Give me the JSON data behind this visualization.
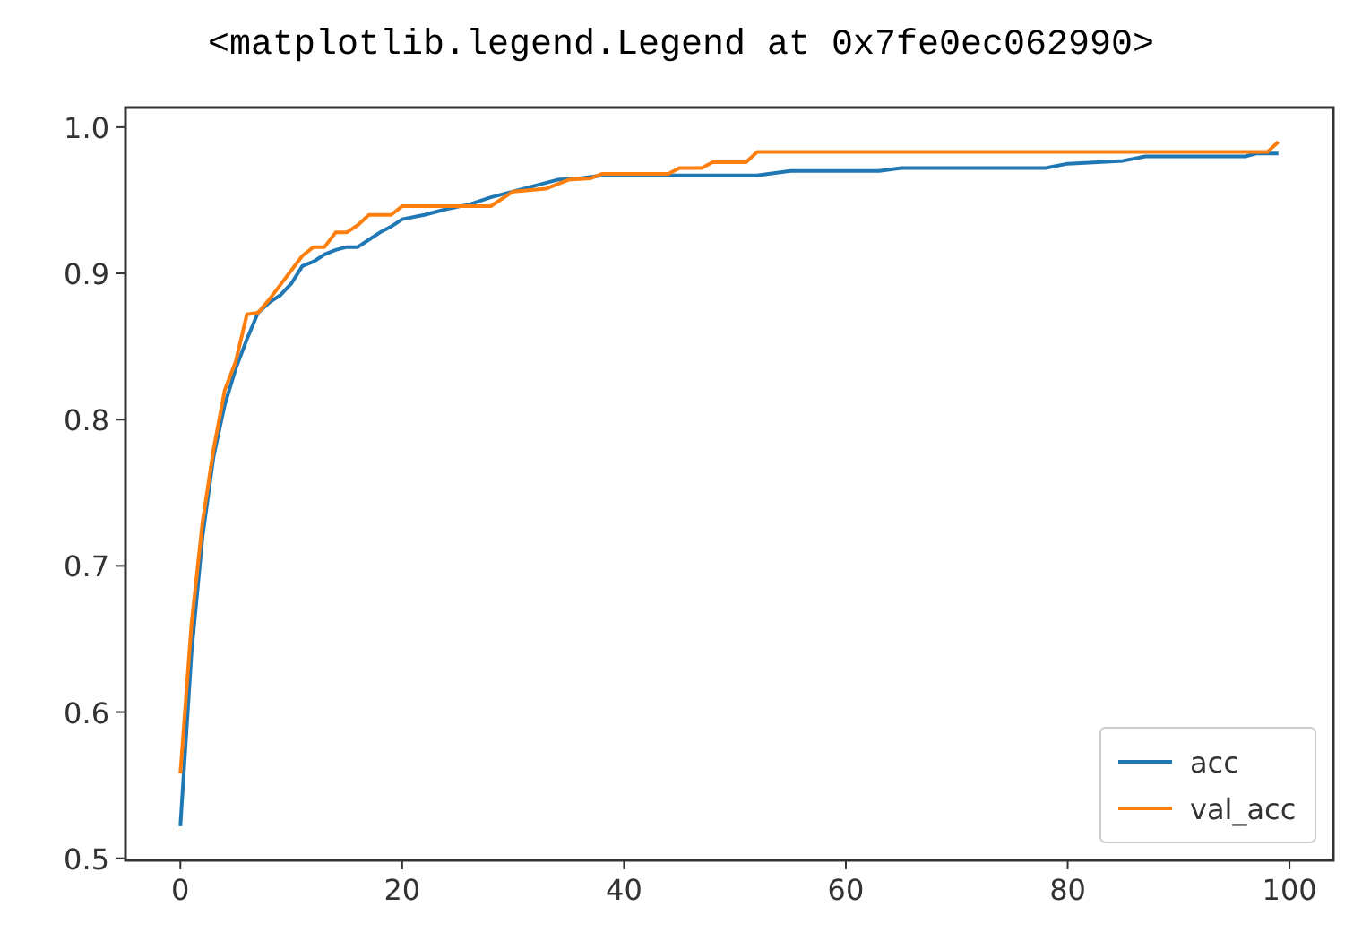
{
  "chart_data": {
    "type": "line",
    "annotations": [
      "<matplotlib.legend.Legend at 0x7fe0ec062990>"
    ],
    "xlim": [
      -4.95,
      103.95
    ],
    "xticks": [
      0,
      20,
      40,
      60,
      80,
      100
    ],
    "ylim": [
      0.4986,
      1.0134
    ],
    "yticks": [
      0.5,
      0.6,
      0.7,
      0.8,
      0.9,
      {
        "value": 1,
        "label": "1.0"
      }
    ],
    "grid": false,
    "legend": "bottom right",
    "series": [
      {
        "name": "acc",
        "color": "#1f77b4",
        "x": [
          0,
          1,
          2,
          3,
          4,
          5,
          6,
          7,
          8,
          9,
          10,
          11,
          12,
          13,
          14,
          15,
          16,
          17,
          18,
          19,
          20,
          22,
          24,
          26,
          28,
          30,
          32,
          34,
          36,
          38,
          52,
          55,
          63,
          65,
          78,
          80,
          85,
          87,
          96,
          97,
          99
        ],
        "values": [
          0.522,
          0.64,
          0.72,
          0.775,
          0.81,
          0.835,
          0.855,
          0.873,
          0.88,
          0.885,
          0.893,
          0.905,
          0.908,
          0.913,
          0.916,
          0.918,
          0.918,
          0.923,
          0.928,
          0.932,
          0.937,
          0.94,
          0.944,
          0.947,
          0.952,
          0.956,
          0.96,
          0.964,
          0.965,
          0.967,
          0.967,
          0.97,
          0.97,
          0.972,
          0.972,
          0.975,
          0.977,
          0.98,
          0.98,
          0.982,
          0.982
        ]
      },
      {
        "name": "val_acc",
        "color": "#ff7f0e",
        "x": [
          0,
          1,
          2,
          3,
          4,
          5,
          6,
          7,
          8,
          9,
          10,
          11,
          12,
          13,
          14,
          15,
          16,
          17,
          19,
          20,
          26,
          28,
          30,
          33,
          35,
          37,
          38,
          44,
          45,
          47,
          48,
          51,
          52,
          98,
          99
        ],
        "values": [
          0.558,
          0.66,
          0.73,
          0.78,
          0.82,
          0.84,
          0.872,
          0.873,
          0.882,
          0.892,
          0.902,
          0.912,
          0.918,
          0.918,
          0.928,
          0.928,
          0.933,
          0.94,
          0.94,
          0.946,
          0.946,
          0.946,
          0.956,
          0.958,
          0.964,
          0.965,
          0.968,
          0.968,
          0.972,
          0.972,
          0.976,
          0.976,
          0.983,
          0.983,
          0.99
        ]
      }
    ]
  }
}
